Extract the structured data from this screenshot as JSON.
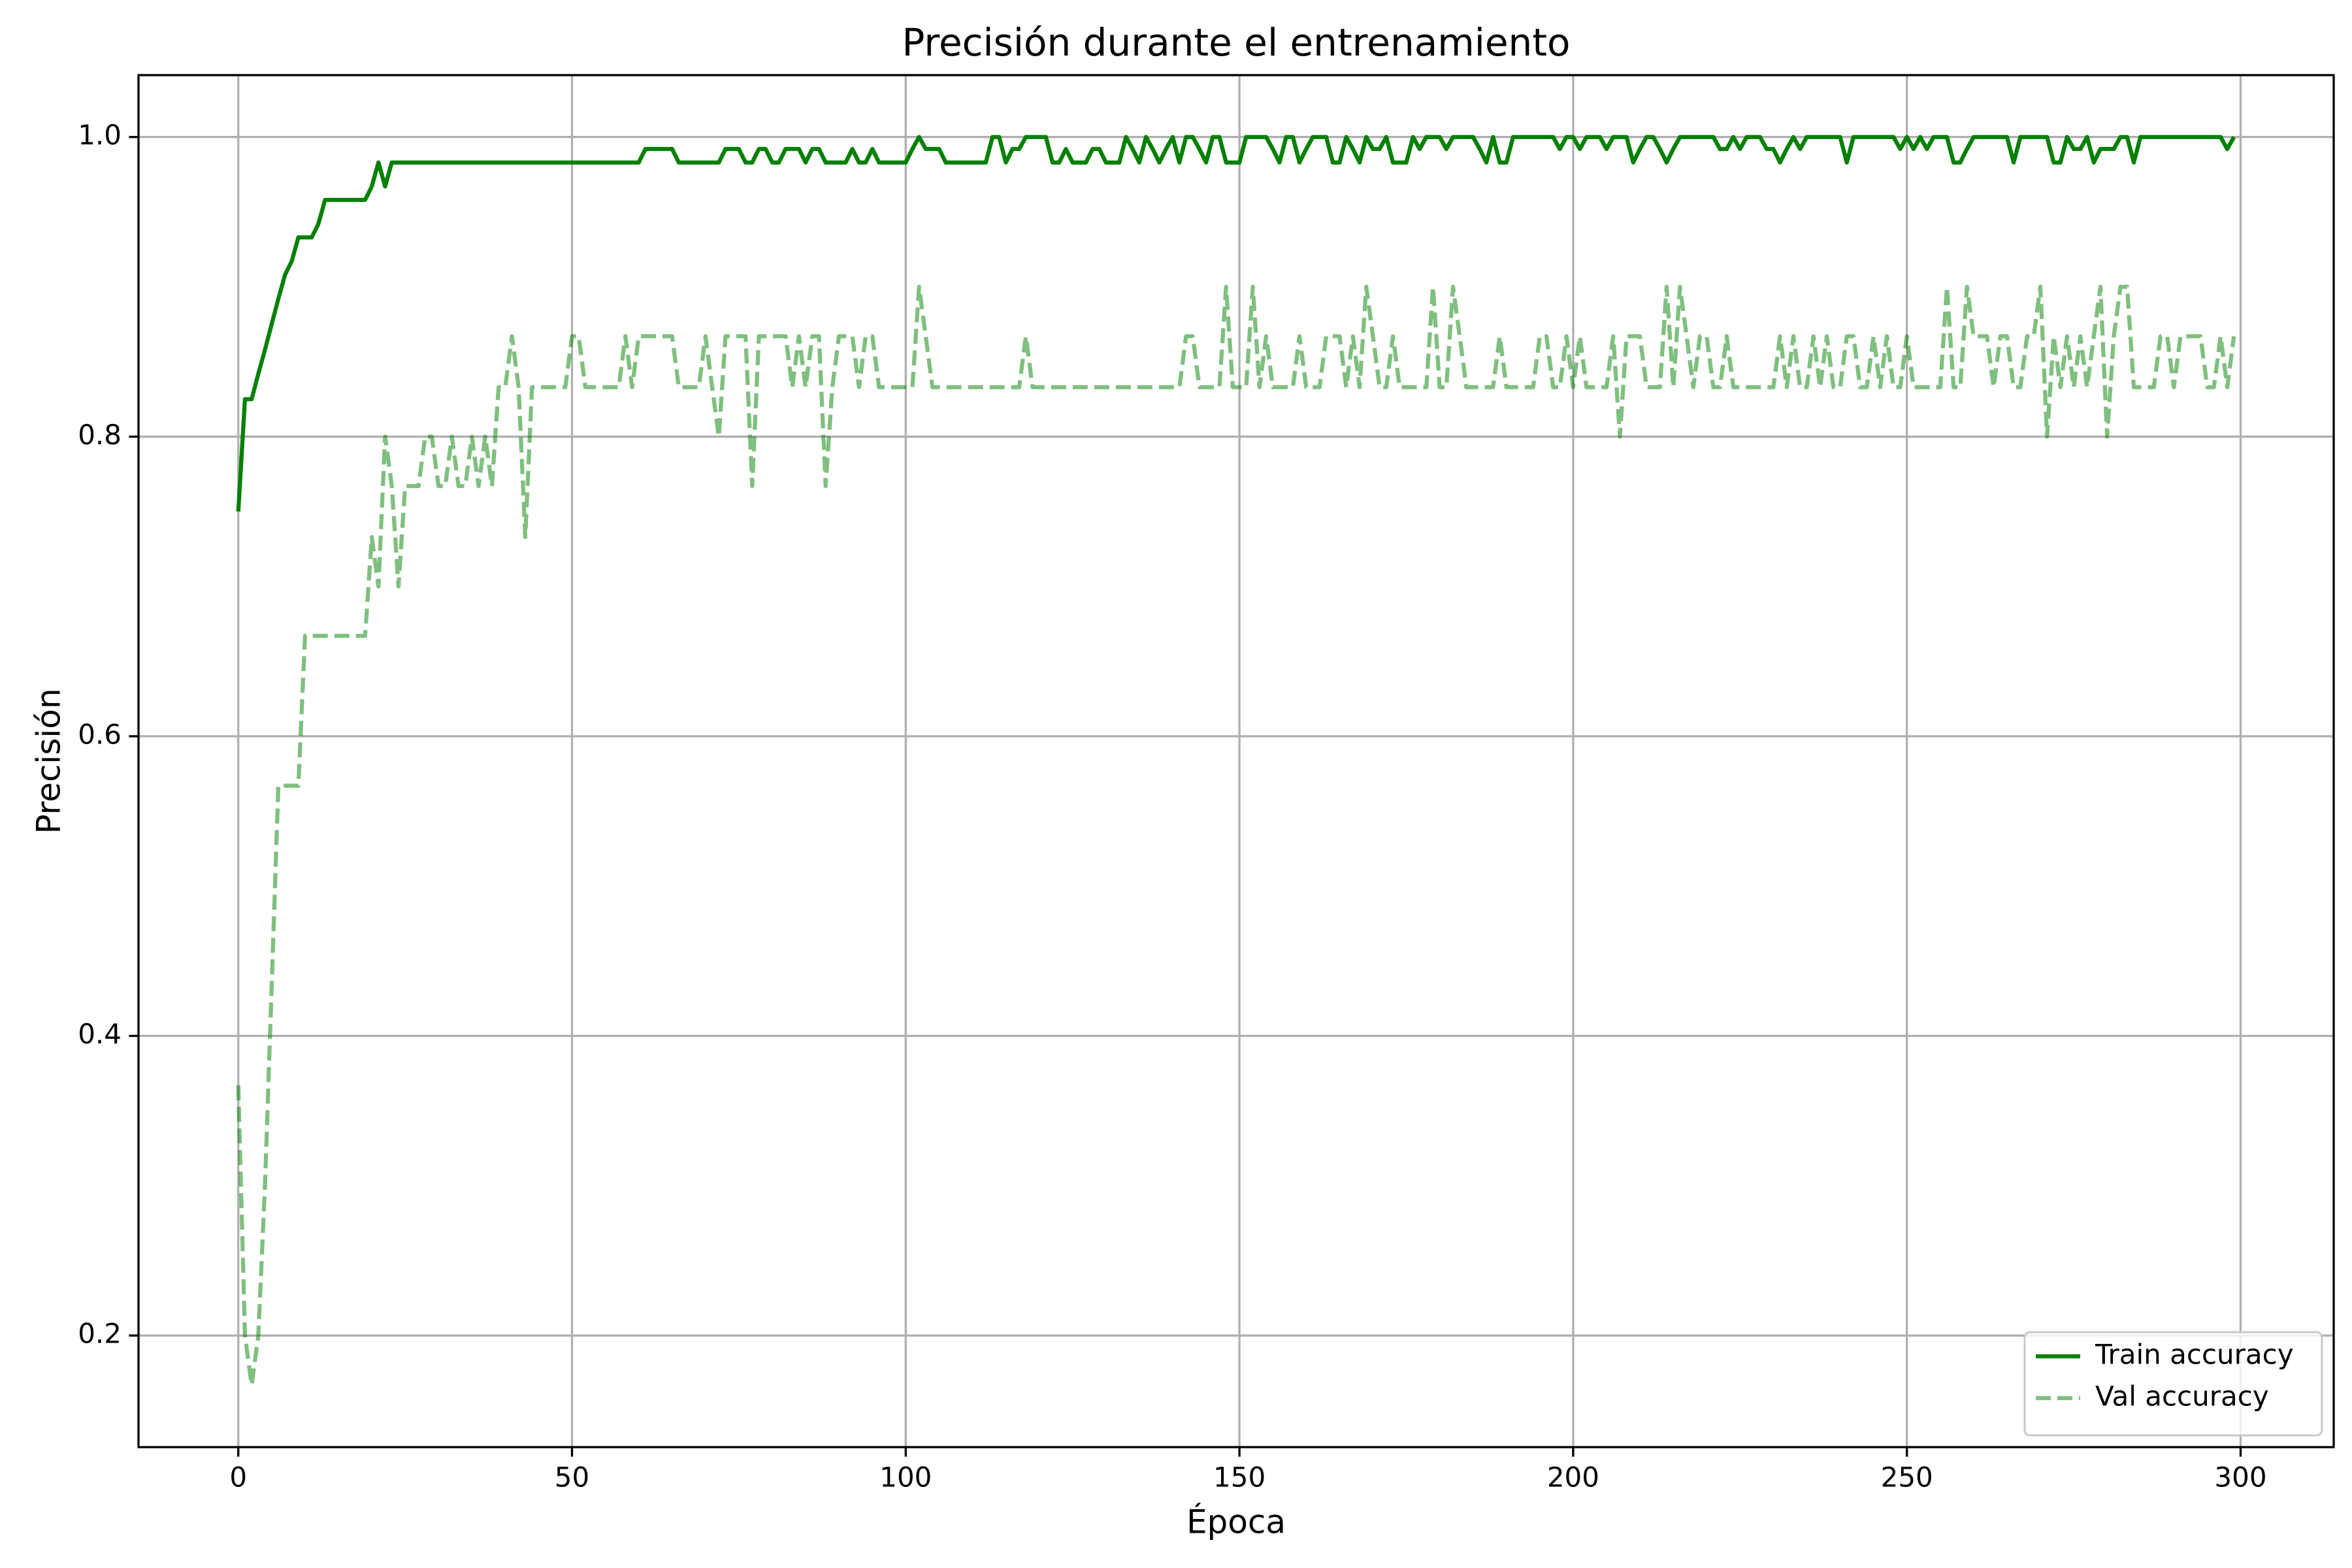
{
  "chart_data": {
    "type": "line",
    "title": "Precisión durante el entrenamiento",
    "x_label": "Época",
    "y_label": "Precisión",
    "x": [
      0,
      1,
      2,
      3,
      4,
      5,
      6,
      7,
      8,
      9,
      10,
      11,
      12,
      13,
      14,
      15,
      16,
      17,
      18,
      19,
      20,
      21,
      22,
      23,
      24,
      25,
      26,
      27,
      28,
      29,
      30,
      31,
      32,
      33,
      34,
      35,
      36,
      37,
      38,
      39,
      40,
      41,
      42,
      43,
      44,
      45,
      46,
      47,
      48,
      49,
      50,
      51,
      52,
      53,
      54,
      55,
      56,
      57,
      58,
      59,
      60,
      61,
      62,
      63,
      64,
      65,
      66,
      67,
      68,
      69,
      70,
      71,
      72,
      73,
      74,
      75,
      76,
      77,
      78,
      79,
      80,
      81,
      82,
      83,
      84,
      85,
      86,
      87,
      88,
      89,
      90,
      91,
      92,
      93,
      94,
      95,
      96,
      97,
      98,
      99,
      100,
      101,
      102,
      103,
      104,
      105,
      106,
      107,
      108,
      109,
      110,
      111,
      112,
      113,
      114,
      115,
      116,
      117,
      118,
      119,
      120,
      121,
      122,
      123,
      124,
      125,
      126,
      127,
      128,
      129,
      130,
      131,
      132,
      133,
      134,
      135,
      136,
      137,
      138,
      139,
      140,
      141,
      142,
      143,
      144,
      145,
      146,
      147,
      148,
      149,
      150,
      151,
      152,
      153,
      154,
      155,
      156,
      157,
      158,
      159,
      160,
      161,
      162,
      163,
      164,
      165,
      166,
      167,
      168,
      169,
      170,
      171,
      172,
      173,
      174,
      175,
      176,
      177,
      178,
      179,
      180,
      181,
      182,
      183,
      184,
      185,
      186,
      187,
      188,
      189,
      190,
      191,
      192,
      193,
      194,
      195,
      196,
      197,
      198,
      199,
      200,
      201,
      202,
      203,
      204,
      205,
      206,
      207,
      208,
      209,
      210,
      211,
      212,
      213,
      214,
      215,
      216,
      217,
      218,
      219,
      220,
      221,
      222,
      223,
      224,
      225,
      226,
      227,
      228,
      229,
      230,
      231,
      232,
      233,
      234,
      235,
      236,
      237,
      238,
      239,
      240,
      241,
      242,
      243,
      244,
      245,
      246,
      247,
      248,
      249,
      250,
      251,
      252,
      253,
      254,
      255,
      256,
      257,
      258,
      259,
      260,
      261,
      262,
      263,
      264,
      265,
      266,
      267,
      268,
      269,
      270,
      271,
      272,
      273,
      274,
      275,
      276,
      277,
      278,
      279,
      280,
      281,
      282,
      283,
      284,
      285,
      286,
      287,
      288,
      289,
      290,
      291,
      292,
      293,
      294,
      295,
      296,
      297,
      298,
      299
    ],
    "series": [
      {
        "name": "Train accuracy",
        "color": "#008000",
        "linestyle": "solid",
        "opacity": 1,
        "values": [
          0.75,
          0.825,
          0.825,
          0.842,
          0.858,
          0.875,
          0.892,
          0.908,
          0.917,
          0.933,
          0.933,
          0.933,
          0.942,
          0.958,
          0.958,
          0.958,
          0.958,
          0.958,
          0.958,
          0.958,
          0.967,
          0.983,
          0.967,
          0.983,
          0.983,
          0.983,
          0.983,
          0.983,
          0.983,
          0.983,
          0.983,
          0.983,
          0.983,
          0.983,
          0.983,
          0.983,
          0.983,
          0.983,
          0.983,
          0.983,
          0.983,
          0.983,
          0.983,
          0.983,
          0.983,
          0.983,
          0.983,
          0.983,
          0.983,
          0.983,
          0.983,
          0.983,
          0.983,
          0.983,
          0.983,
          0.983,
          0.983,
          0.983,
          0.983,
          0.983,
          0.983,
          0.992,
          0.992,
          0.992,
          0.992,
          0.992,
          0.983,
          0.983,
          0.983,
          0.983,
          0.983,
          0.983,
          0.983,
          0.992,
          0.992,
          0.992,
          0.983,
          0.983,
          0.992,
          0.992,
          0.983,
          0.983,
          0.992,
          0.992,
          0.992,
          0.983,
          0.992,
          0.992,
          0.983,
          0.983,
          0.983,
          0.983,
          0.992,
          0.983,
          0.983,
          0.992,
          0.983,
          0.983,
          0.983,
          0.983,
          0.983,
          0.992,
          1.0,
          0.992,
          0.992,
          0.992,
          0.983,
          0.983,
          0.983,
          0.983,
          0.983,
          0.983,
          0.983,
          1.0,
          1.0,
          0.983,
          0.992,
          0.992,
          1.0,
          1.0,
          1.0,
          1.0,
          0.983,
          0.983,
          0.992,
          0.983,
          0.983,
          0.983,
          0.992,
          0.992,
          0.983,
          0.983,
          0.983,
          1.0,
          0.992,
          0.983,
          1.0,
          0.992,
          0.983,
          0.992,
          1.0,
          0.983,
          1.0,
          1.0,
          0.992,
          0.983,
          1.0,
          1.0,
          0.983,
          0.983,
          0.983,
          1.0,
          1.0,
          1.0,
          1.0,
          0.992,
          0.983,
          1.0,
          1.0,
          0.983,
          0.992,
          1.0,
          1.0,
          1.0,
          0.983,
          0.983,
          1.0,
          0.992,
          0.983,
          1.0,
          0.992,
          0.992,
          1.0,
          0.983,
          0.983,
          0.983,
          1.0,
          0.992,
          1.0,
          1.0,
          1.0,
          0.992,
          1.0,
          1.0,
          1.0,
          1.0,
          0.992,
          0.983,
          1.0,
          0.983,
          0.983,
          1.0,
          1.0,
          1.0,
          1.0,
          1.0,
          1.0,
          1.0,
          0.992,
          1.0,
          1.0,
          0.992,
          1.0,
          1.0,
          1.0,
          0.992,
          1.0,
          1.0,
          1.0,
          0.983,
          0.992,
          1.0,
          1.0,
          0.992,
          0.983,
          0.992,
          1.0,
          1.0,
          1.0,
          1.0,
          1.0,
          1.0,
          0.992,
          0.992,
          1.0,
          0.992,
          1.0,
          1.0,
          1.0,
          0.992,
          0.992,
          0.983,
          0.992,
          1.0,
          0.992,
          1.0,
          1.0,
          1.0,
          1.0,
          1.0,
          1.0,
          0.983,
          1.0,
          1.0,
          1.0,
          1.0,
          1.0,
          1.0,
          1.0,
          0.992,
          1.0,
          0.992,
          1.0,
          0.992,
          1.0,
          1.0,
          1.0,
          0.983,
          0.983,
          0.992,
          1.0,
          1.0,
          1.0,
          1.0,
          1.0,
          1.0,
          0.983,
          1.0,
          1.0,
          1.0,
          1.0,
          1.0,
          0.983,
          0.983,
          1.0,
          0.992,
          0.992,
          1.0,
          0.983,
          0.992,
          0.992,
          0.992,
          1.0,
          1.0,
          0.983,
          1.0,
          1.0,
          1.0,
          1.0,
          1.0,
          1.0,
          1.0,
          1.0,
          1.0,
          1.0,
          1.0,
          1.0,
          1.0,
          0.992,
          1.0
        ]
      },
      {
        "name": "Val accuracy",
        "color": "#008000",
        "linestyle": "dashed",
        "opacity": 0.5,
        "values": [
          0.367,
          0.2,
          0.167,
          0.2,
          0.3,
          0.433,
          0.567,
          0.567,
          0.567,
          0.567,
          0.667,
          0.667,
          0.667,
          0.667,
          0.667,
          0.667,
          0.667,
          0.667,
          0.667,
          0.667,
          0.733,
          0.7,
          0.8,
          0.767,
          0.7,
          0.767,
          0.767,
          0.767,
          0.8,
          0.8,
          0.767,
          0.767,
          0.8,
          0.767,
          0.767,
          0.8,
          0.767,
          0.8,
          0.767,
          0.833,
          0.833,
          0.867,
          0.833,
          0.733,
          0.833,
          0.833,
          0.833,
          0.833,
          0.833,
          0.833,
          0.867,
          0.867,
          0.833,
          0.833,
          0.833,
          0.833,
          0.833,
          0.833,
          0.867,
          0.833,
          0.867,
          0.867,
          0.867,
          0.867,
          0.867,
          0.867,
          0.833,
          0.833,
          0.833,
          0.833,
          0.867,
          0.833,
          0.8,
          0.867,
          0.867,
          0.867,
          0.867,
          0.767,
          0.867,
          0.867,
          0.867,
          0.867,
          0.867,
          0.833,
          0.867,
          0.833,
          0.867,
          0.867,
          0.767,
          0.833,
          0.867,
          0.867,
          0.867,
          0.833,
          0.867,
          0.867,
          0.833,
          0.833,
          0.833,
          0.833,
          0.833,
          0.833,
          0.9,
          0.867,
          0.833,
          0.833,
          0.833,
          0.833,
          0.833,
          0.833,
          0.833,
          0.833,
          0.833,
          0.833,
          0.833,
          0.833,
          0.833,
          0.833,
          0.867,
          0.833,
          0.833,
          0.833,
          0.833,
          0.833,
          0.833,
          0.833,
          0.833,
          0.833,
          0.833,
          0.833,
          0.833,
          0.833,
          0.833,
          0.833,
          0.833,
          0.833,
          0.833,
          0.833,
          0.833,
          0.833,
          0.833,
          0.833,
          0.867,
          0.867,
          0.833,
          0.833,
          0.833,
          0.833,
          0.9,
          0.833,
          0.833,
          0.833,
          0.9,
          0.833,
          0.867,
          0.833,
          0.833,
          0.833,
          0.833,
          0.867,
          0.833,
          0.833,
          0.833,
          0.867,
          0.867,
          0.867,
          0.833,
          0.867,
          0.833,
          0.9,
          0.867,
          0.833,
          0.833,
          0.867,
          0.833,
          0.833,
          0.833,
          0.833,
          0.833,
          0.9,
          0.833,
          0.833,
          0.9,
          0.867,
          0.833,
          0.833,
          0.833,
          0.833,
          0.833,
          0.867,
          0.833,
          0.833,
          0.833,
          0.833,
          0.833,
          0.867,
          0.867,
          0.833,
          0.833,
          0.867,
          0.833,
          0.867,
          0.833,
          0.833,
          0.833,
          0.833,
          0.867,
          0.8,
          0.867,
          0.867,
          0.867,
          0.833,
          0.833,
          0.833,
          0.9,
          0.833,
          0.9,
          0.867,
          0.833,
          0.867,
          0.867,
          0.833,
          0.833,
          0.867,
          0.833,
          0.833,
          0.833,
          0.833,
          0.833,
          0.833,
          0.833,
          0.867,
          0.833,
          0.867,
          0.833,
          0.833,
          0.867,
          0.833,
          0.867,
          0.833,
          0.833,
          0.867,
          0.867,
          0.833,
          0.833,
          0.867,
          0.833,
          0.867,
          0.833,
          0.833,
          0.867,
          0.833,
          0.833,
          0.833,
          0.833,
          0.833,
          0.9,
          0.833,
          0.833,
          0.9,
          0.867,
          0.867,
          0.867,
          0.833,
          0.867,
          0.867,
          0.833,
          0.833,
          0.867,
          0.867,
          0.9,
          0.8,
          0.867,
          0.833,
          0.867,
          0.833,
          0.867,
          0.833,
          0.867,
          0.9,
          0.8,
          0.867,
          0.9,
          0.9,
          0.833,
          0.833,
          0.833,
          0.833,
          0.867,
          0.867,
          0.833,
          0.867,
          0.867,
          0.867,
          0.867,
          0.833,
          0.833,
          0.867,
          0.833,
          0.867
        ]
      }
    ],
    "xlim": [
      -14.95,
      313.95
    ],
    "ylim": [
      0.1255,
      1.0413
    ],
    "xticks": [
      0,
      50,
      100,
      150,
      200,
      250,
      300
    ],
    "yticks": [
      0.2,
      0.4,
      0.6,
      0.8,
      {
        "value": 1,
        "label": "1.0"
      }
    ],
    "grid": true,
    "legend": "lower right"
  }
}
